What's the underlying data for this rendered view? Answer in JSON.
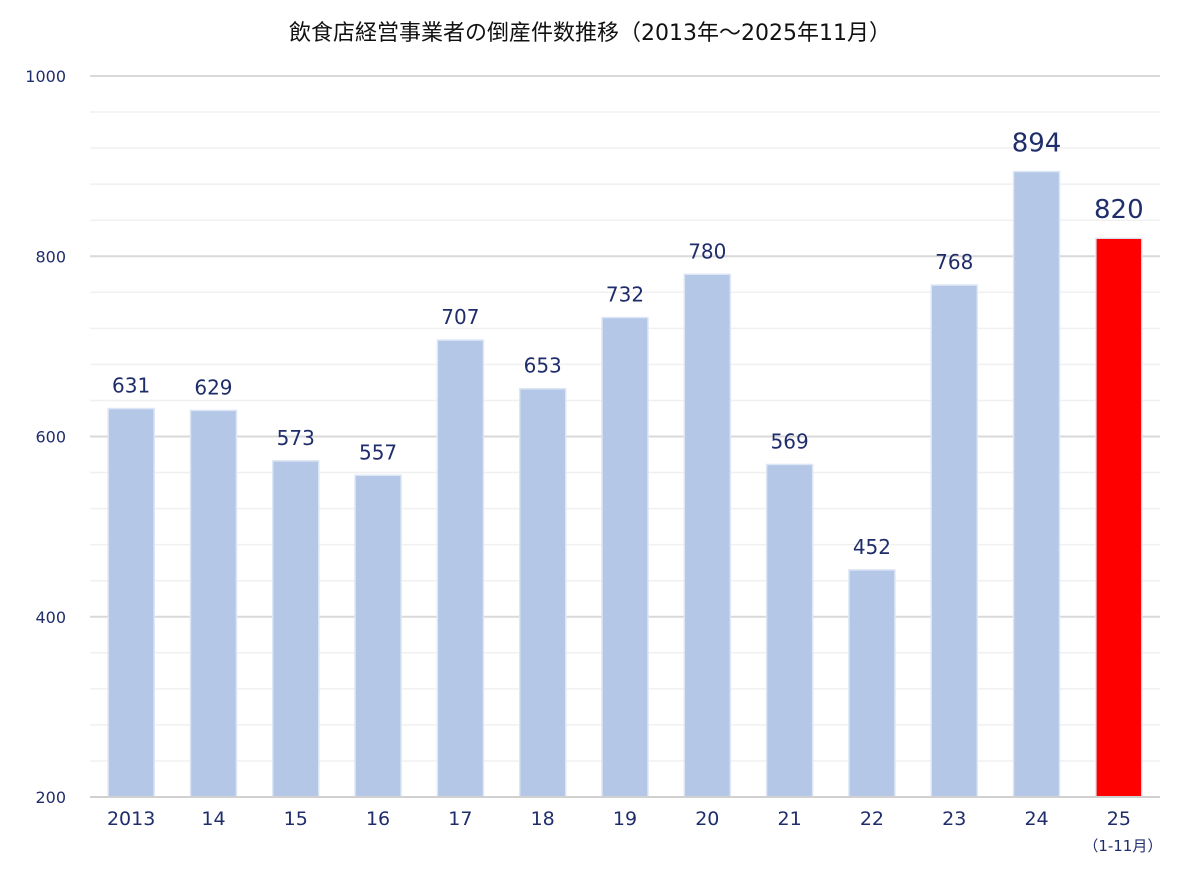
{
  "chart_data": {
    "type": "bar",
    "title": "飲食店経営事業者の倒産件数推移（2013年～2025年11月）",
    "xlabel": "",
    "ylabel": "",
    "ylim": [
      200,
      1000
    ],
    "yticks": [
      "200",
      "400",
      "600",
      "800",
      "1000"
    ],
    "minor_grid_step": 40,
    "grid": true,
    "categories": [
      "2013",
      "14",
      "15",
      "16",
      "17",
      "18",
      "19",
      "20",
      "21",
      "22",
      "23",
      "24",
      "25"
    ],
    "category_sublabels": {
      "25": "（1-11月）"
    },
    "values": [
      631,
      629,
      573,
      557,
      707,
      653,
      732,
      780,
      569,
      452,
      768,
      894,
      820
    ],
    "value_labels": [
      "631",
      "629",
      "573",
      "557",
      "707",
      "653",
      "732",
      "780",
      "569",
      "452",
      "768",
      "894",
      "820"
    ],
    "colors": {
      "bar": "#b4c7e7",
      "highlight_bar": "#ff0000",
      "label": "#1f2d6b",
      "highlight_label": "#ff0000",
      "grid": "#d9d9d9",
      "minor_grid": "#f0f0f0"
    },
    "highlight_index": 12,
    "emphasized_index": 11
  }
}
